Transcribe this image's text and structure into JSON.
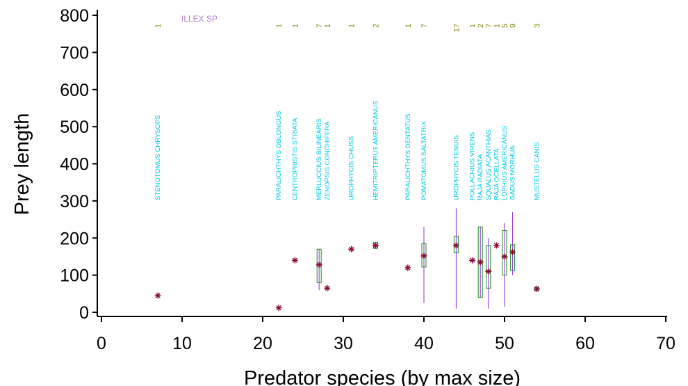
{
  "chart_data": {
    "type": "box",
    "xlabel": "Predator species (by max size)",
    "ylabel": "Prey length",
    "xlim": [
      0,
      70
    ],
    "ylim": [
      0,
      800
    ],
    "xticks": [
      "0",
      "10",
      "20",
      "30",
      "40",
      "50",
      "60",
      "70"
    ],
    "yticks": [
      "0",
      "100",
      "200",
      "300",
      "400",
      "500",
      "600",
      "700",
      "800"
    ],
    "top_annotation": "ILLEX SP",
    "colors": {
      "species_label": "#00c8e0",
      "count_label": "#8a8a10",
      "box": "#1a8a1a",
      "whisker": "#8a2be2",
      "mean_marker": "#8b0a3a",
      "median_marker": "#e08000",
      "annotation": "#b080d0"
    },
    "groups": [
      {
        "x": 7,
        "label": "STENOTOMUS CHRYSOPS",
        "n": "1",
        "mean": 45
      },
      {
        "x": 22,
        "label": "PARALICHTHYS OBLONGUS",
        "n": "1",
        "mean": 12
      },
      {
        "x": 24,
        "label": "CENTROPRISTIS STRIATA",
        "n": "1",
        "mean": 140
      },
      {
        "x": 27,
        "label": "MERLUCCIUS BILINEARIS",
        "n": "7",
        "mean": 128,
        "q1": 80,
        "q3": 170,
        "low": 60,
        "high": 170
      },
      {
        "x": 28,
        "label": "ZENOPSIS CONCHIFERA",
        "n": "1",
        "mean": 65
      },
      {
        "x": 31,
        "label": "UROPHYCIS CHUSS",
        "n": "1",
        "mean": 170
      },
      {
        "x": 34,
        "label": "HEMITRIPTERUS AMERICANUS",
        "n": "2",
        "mean": 180,
        "q1": 172,
        "q3": 188,
        "low": 172,
        "high": 188
      },
      {
        "x": 38,
        "label": "PARALICHTHYS DENTATUS",
        "n": "1",
        "mean": 120
      },
      {
        "x": 40,
        "label": "POMATOMUS SALTATRIX",
        "n": "7",
        "mean": 152,
        "q1": 122,
        "q3": 185,
        "low": 25,
        "high": 230
      },
      {
        "x": 44,
        "label": "UROPHYCIS TENUIS",
        "n": "17",
        "mean": 180,
        "q1": 160,
        "q3": 205,
        "low": 10,
        "high": 280
      },
      {
        "x": 46,
        "label": "POLLACHIUS VIRENS",
        "n": "1",
        "mean": 140
      },
      {
        "x": 47,
        "label": "RAJA RADIATA",
        "n": "2",
        "mean": 135,
        "q1": 40,
        "q3": 230,
        "low": 40,
        "high": 230
      },
      {
        "x": 48,
        "label": "SQUALUS ACANTHIAS",
        "n": "7",
        "mean": 110,
        "q1": 65,
        "q3": 180,
        "low": 10,
        "high": 200
      },
      {
        "x": 49,
        "label": "RAJA OCELLATA",
        "n": "1",
        "mean": 180
      },
      {
        "x": 50,
        "label": "LOPHIUS AMERICANUS",
        "n": "5",
        "mean": 150,
        "q1": 100,
        "q3": 220,
        "low": 15,
        "high": 240
      },
      {
        "x": 51,
        "label": "GADUS MORHUA",
        "n": "9",
        "mean": 162,
        "q1": 112,
        "q3": 182,
        "low": 100,
        "high": 270
      },
      {
        "x": 54,
        "label": "MUSTELUS CANIS",
        "n": "3",
        "mean": 63,
        "q1": 58,
        "q3": 68,
        "low": 58,
        "high": 68
      }
    ]
  }
}
